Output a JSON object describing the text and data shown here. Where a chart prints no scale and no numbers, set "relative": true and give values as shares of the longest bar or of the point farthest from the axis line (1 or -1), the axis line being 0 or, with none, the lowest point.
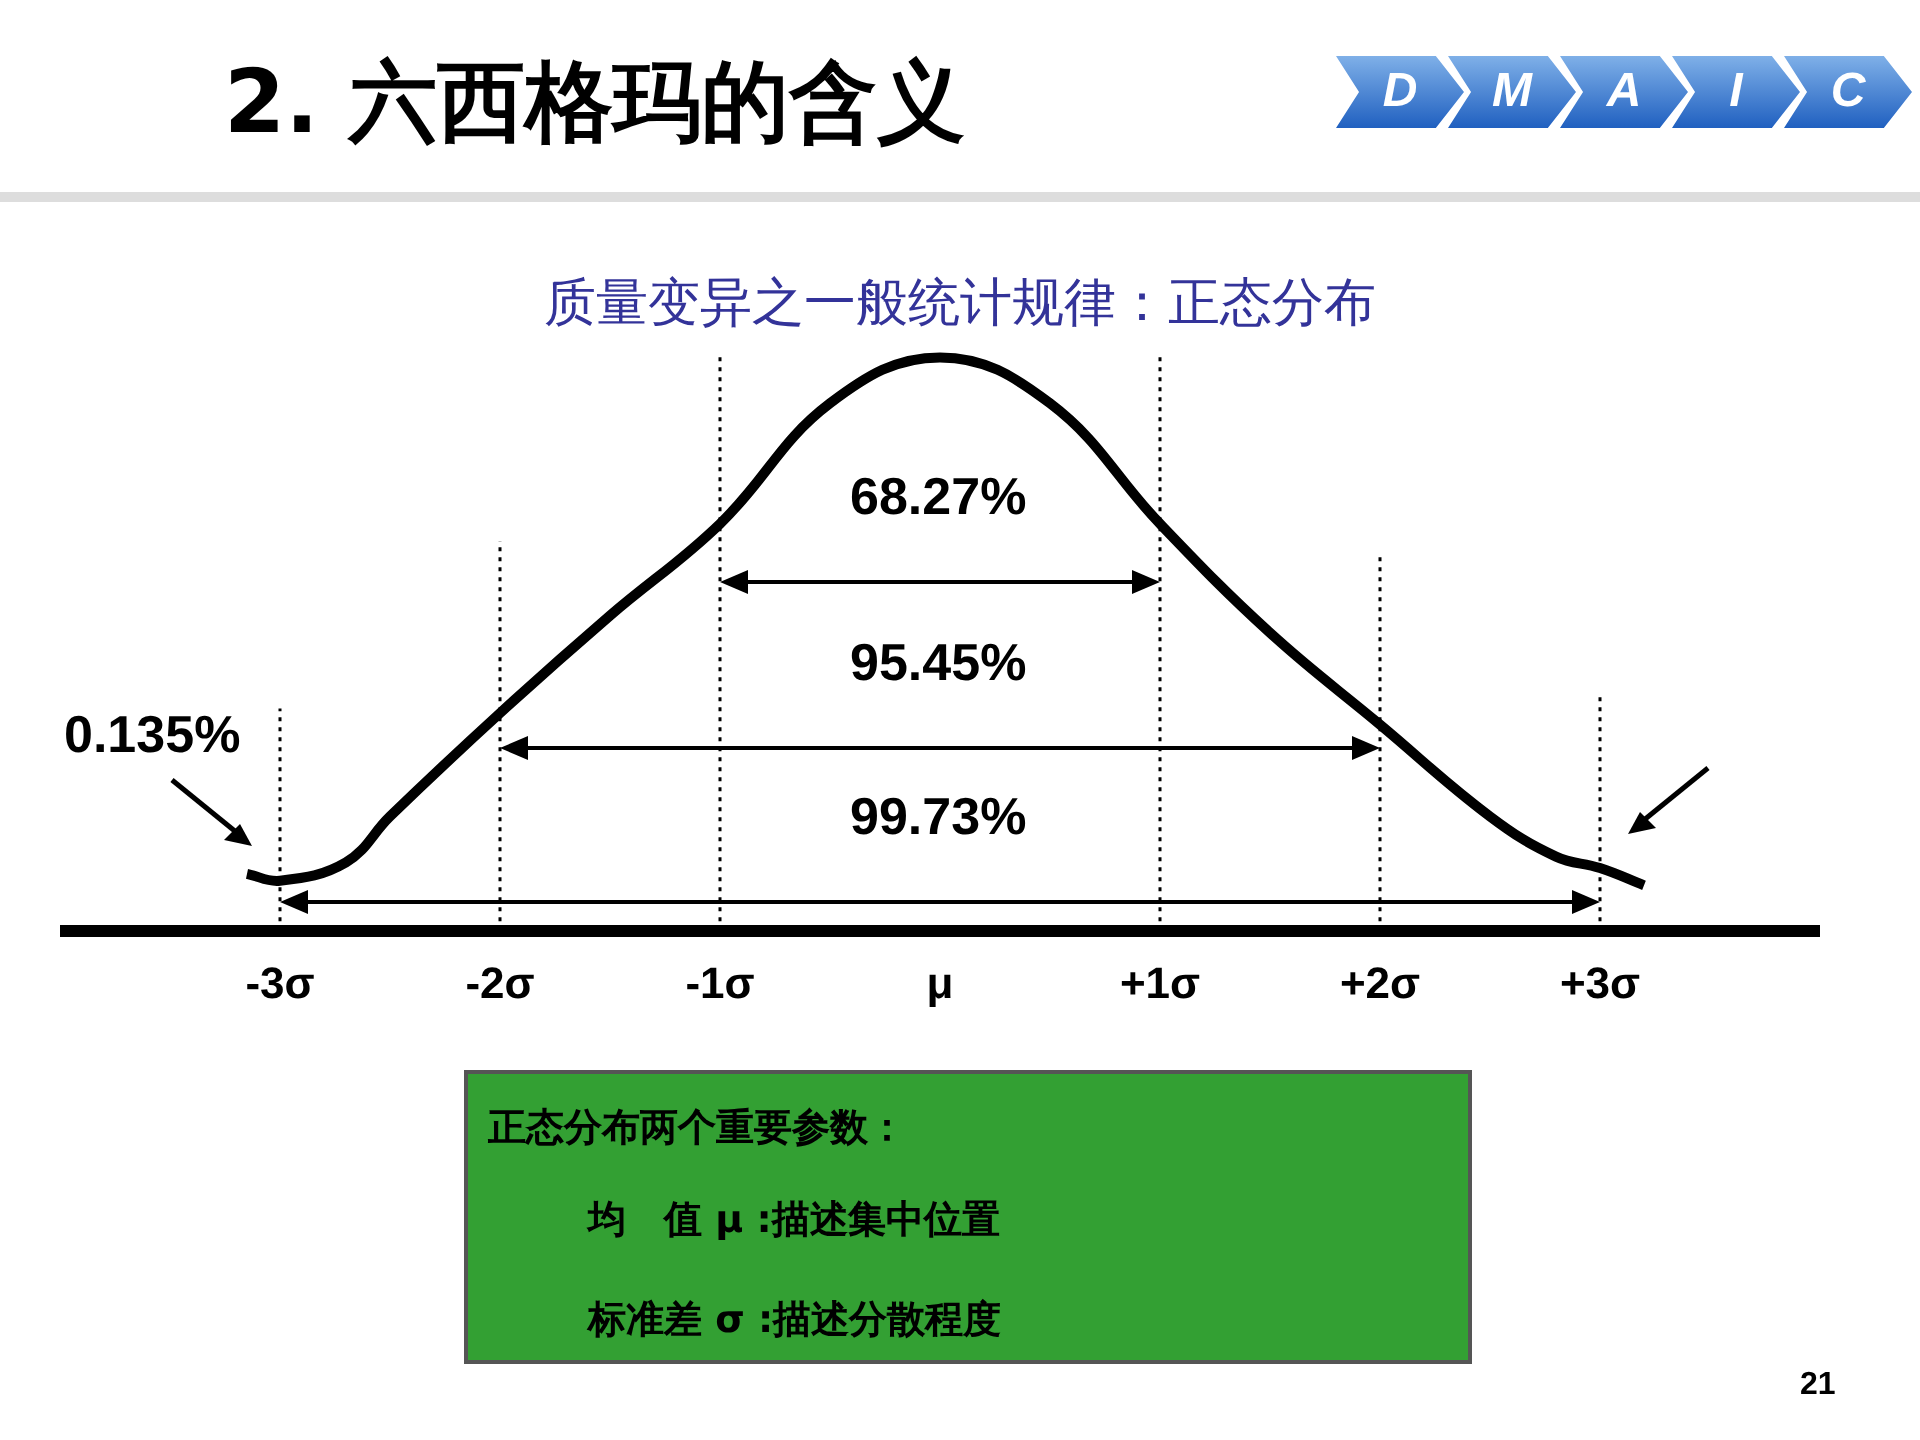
{
  "chart_data": {
    "type": "line",
    "title": "2.  六西格玛的含义",
    "subtitle": "质量变异之一般统计规律：正态分布",
    "relative": true,
    "x": [
      -3.15,
      -3,
      -2.7,
      -2.5,
      -2,
      -1.5,
      -1,
      -0.5,
      0,
      0.5,
      1,
      1.5,
      2,
      2.5,
      2.8,
      3,
      3.2
    ],
    "series": [
      {
        "color": "#000000",
        "values": [
          0.1,
          0.088,
          0.12,
          0.2,
          0.38,
          0.55,
          0.71,
          0.92,
          1,
          0.92,
          0.71,
          0.52,
          0.36,
          0.2,
          0.13,
          0.11,
          0.08
        ]
      }
    ],
    "xlim": [
      -4,
      4
    ],
    "xticks": [
      {
        "value": -3,
        "label": "-3σ"
      },
      {
        "value": -2,
        "label": "-2σ"
      },
      {
        "value": -1,
        "label": "-1σ"
      },
      {
        "value": 0,
        "label": "μ"
      },
      {
        "value": 1,
        "label": "+1σ"
      },
      {
        "value": 2,
        "label": "+2σ"
      },
      {
        "value": 3,
        "label": "+3σ"
      }
    ],
    "grid": false,
    "legend": false,
    "marker": "none",
    "line_style": "solid",
    "ref_lines": [
      {
        "axis": "x",
        "value": -3,
        "line_style": "dotted"
      },
      {
        "axis": "x",
        "value": -2,
        "line_style": "dotted"
      },
      {
        "axis": "x",
        "value": -1,
        "line_style": "dotted"
      },
      {
        "axis": "x",
        "value": 1,
        "line_style": "dotted"
      },
      {
        "axis": "x",
        "value": 2,
        "line_style": "dotted"
      },
      {
        "axis": "x",
        "value": 3,
        "line_style": "dotted"
      }
    ],
    "annotations": [
      "0.135%",
      "68.27%",
      "95.45%",
      "99.73%",
      "D",
      "M",
      "A",
      "I",
      "C",
      "正态分布两个重要参数：",
      "均　值 μ :描述集中位置",
      "标准差 σ :描述分散程度",
      "21"
    ]
  }
}
